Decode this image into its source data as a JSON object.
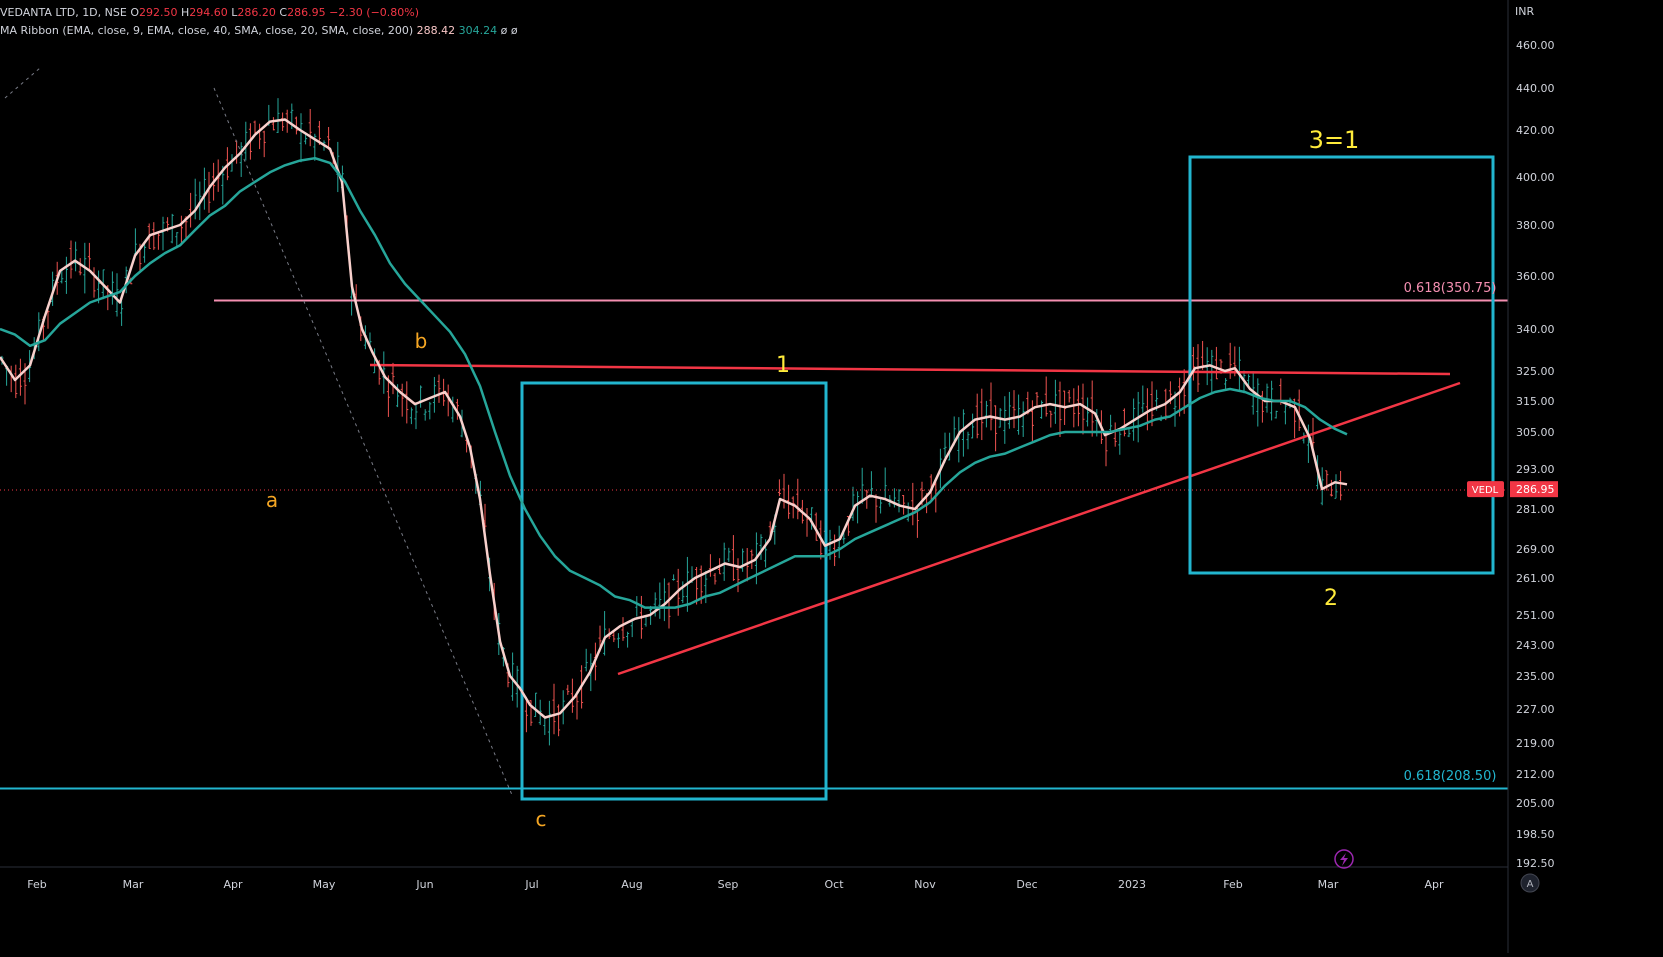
{
  "header": {
    "symbol": "VEDANTA LTD, 1D, NSE",
    "open_label": "O",
    "open": "292.50",
    "high_label": "H",
    "high": "294.60",
    "low_label": "L",
    "low": "286.20",
    "close_label": "C",
    "close": "286.95",
    "change": "−2.30 (−0.80%)",
    "indicator": "MA Ribbon (EMA, close, 9, EMA, close, 40, SMA, close, 20, SMA, close, 200)",
    "ma1": "288.42",
    "ma2": "304.24",
    "ma3": "ø",
    "ma4": "ø"
  },
  "currency": "INR",
  "chart_data": {
    "type": "line",
    "x_labels": [
      "Feb",
      "Mar",
      "Apr",
      "May",
      "Jun",
      "Jul",
      "Aug",
      "Sep",
      "Oct",
      "Nov",
      "Dec",
      "2023",
      "Feb",
      "Mar",
      "Apr"
    ],
    "y_ticks": [
      460.0,
      440.0,
      420.0,
      400.0,
      380.0,
      360.0,
      340.0,
      325.0,
      315.0,
      305.0,
      293.0,
      281.0,
      269.0,
      261.0,
      251.0,
      243.0,
      235.0,
      227.0,
      219.0,
      212.0,
      205.0,
      198.5,
      192.5
    ],
    "y_tick_labels": [
      "460.00",
      "440.00",
      "420.00",
      "400.00",
      "380.00",
      "360.00",
      "340.00",
      "325.00",
      "315.00",
      "305.00",
      "293.00",
      "281.00",
      "269.00",
      "261.00",
      "251.00",
      "243.00",
      "235.00",
      "227.00",
      "219.00",
      "212.00",
      "205.00",
      "198.50",
      "192.50"
    ],
    "price_tag": {
      "symbol": "VEDL",
      "value": "286.95",
      "price": 286.95
    },
    "series": [
      {
        "color": "#f8d0cc",
        "points": [
          [
            0,
            330
          ],
          [
            15,
            322
          ],
          [
            30,
            327
          ],
          [
            45,
            345
          ],
          [
            60,
            362
          ],
          [
            75,
            366
          ],
          [
            90,
            362
          ],
          [
            105,
            356
          ],
          [
            120,
            350
          ],
          [
            135,
            368
          ],
          [
            150,
            376
          ],
          [
            165,
            378
          ],
          [
            180,
            380
          ],
          [
            195,
            386
          ],
          [
            210,
            396
          ],
          [
            225,
            404
          ],
          [
            240,
            410
          ],
          [
            255,
            418
          ],
          [
            270,
            424
          ],
          [
            285,
            425
          ],
          [
            300,
            420
          ],
          [
            315,
            416
          ],
          [
            330,
            412
          ],
          [
            342,
            398
          ],
          [
            352,
            356
          ],
          [
            362,
            340
          ],
          [
            372,
            332
          ],
          [
            385,
            323
          ],
          [
            400,
            318
          ],
          [
            415,
            314
          ],
          [
            430,
            316
          ],
          [
            445,
            318
          ],
          [
            460,
            310
          ],
          [
            470,
            300
          ],
          [
            480,
            284
          ],
          [
            490,
            262
          ],
          [
            500,
            244
          ],
          [
            510,
            235
          ],
          [
            520,
            232
          ],
          [
            530,
            228
          ],
          [
            545,
            225
          ],
          [
            560,
            226
          ],
          [
            575,
            230
          ],
          [
            590,
            236
          ],
          [
            605,
            245
          ],
          [
            620,
            248
          ],
          [
            635,
            250
          ],
          [
            650,
            251
          ],
          [
            665,
            254
          ],
          [
            680,
            258
          ],
          [
            695,
            261
          ],
          [
            710,
            263
          ],
          [
            725,
            265
          ],
          [
            740,
            264
          ],
          [
            755,
            266
          ],
          [
            770,
            272
          ],
          [
            780,
            284
          ],
          [
            795,
            282
          ],
          [
            810,
            278
          ],
          [
            825,
            270
          ],
          [
            840,
            272
          ],
          [
            855,
            282
          ],
          [
            870,
            285
          ],
          [
            885,
            284
          ],
          [
            900,
            282
          ],
          [
            915,
            281
          ],
          [
            930,
            286
          ],
          [
            945,
            296
          ],
          [
            960,
            305
          ],
          [
            975,
            309
          ],
          [
            990,
            310
          ],
          [
            1005,
            309
          ],
          [
            1020,
            310
          ],
          [
            1035,
            313
          ],
          [
            1050,
            314
          ],
          [
            1065,
            313
          ],
          [
            1080,
            314
          ],
          [
            1095,
            311
          ],
          [
            1105,
            304
          ],
          [
            1120,
            306
          ],
          [
            1135,
            309
          ],
          [
            1150,
            312
          ],
          [
            1165,
            314
          ],
          [
            1180,
            318
          ],
          [
            1195,
            326
          ],
          [
            1210,
            327
          ],
          [
            1225,
            325
          ],
          [
            1235,
            326
          ],
          [
            1250,
            319
          ],
          [
            1265,
            315
          ],
          [
            1280,
            315
          ],
          [
            1295,
            313
          ],
          [
            1310,
            303
          ],
          [
            1322,
            287
          ],
          [
            1335,
            289
          ],
          [
            1347,
            288.42
          ]
        ]
      },
      {
        "color": "#26a69a",
        "points": [
          [
            0,
            340
          ],
          [
            15,
            338
          ],
          [
            30,
            334
          ],
          [
            45,
            336
          ],
          [
            60,
            342
          ],
          [
            75,
            346
          ],
          [
            90,
            350
          ],
          [
            105,
            352
          ],
          [
            120,
            354
          ],
          [
            135,
            360
          ],
          [
            150,
            365
          ],
          [
            165,
            369
          ],
          [
            180,
            372
          ],
          [
            195,
            378
          ],
          [
            210,
            384
          ],
          [
            225,
            388
          ],
          [
            240,
            394
          ],
          [
            255,
            398
          ],
          [
            270,
            402
          ],
          [
            285,
            405
          ],
          [
            300,
            407
          ],
          [
            315,
            408
          ],
          [
            330,
            406
          ],
          [
            345,
            398
          ],
          [
            360,
            386
          ],
          [
            375,
            376
          ],
          [
            390,
            365
          ],
          [
            405,
            357
          ],
          [
            420,
            351
          ],
          [
            435,
            345
          ],
          [
            450,
            339
          ],
          [
            465,
            331
          ],
          [
            480,
            320
          ],
          [
            495,
            305
          ],
          [
            510,
            291
          ],
          [
            525,
            281
          ],
          [
            540,
            273
          ],
          [
            555,
            267
          ],
          [
            570,
            263
          ],
          [
            585,
            261
          ],
          [
            600,
            259
          ],
          [
            615,
            256
          ],
          [
            630,
            255
          ],
          [
            645,
            253
          ],
          [
            660,
            253
          ],
          [
            675,
            253
          ],
          [
            690,
            254
          ],
          [
            705,
            256
          ],
          [
            720,
            257
          ],
          [
            735,
            259
          ],
          [
            750,
            261
          ],
          [
            765,
            263
          ],
          [
            780,
            265
          ],
          [
            795,
            267
          ],
          [
            810,
            267
          ],
          [
            825,
            267
          ],
          [
            840,
            269
          ],
          [
            855,
            272
          ],
          [
            870,
            274
          ],
          [
            885,
            276
          ],
          [
            900,
            278
          ],
          [
            915,
            280
          ],
          [
            930,
            283
          ],
          [
            945,
            288
          ],
          [
            960,
            292
          ],
          [
            975,
            295
          ],
          [
            990,
            297
          ],
          [
            1005,
            298
          ],
          [
            1020,
            300
          ],
          [
            1035,
            302
          ],
          [
            1050,
            304
          ],
          [
            1065,
            305
          ],
          [
            1080,
            305
          ],
          [
            1095,
            305
          ],
          [
            1110,
            305
          ],
          [
            1125,
            306
          ],
          [
            1140,
            307
          ],
          [
            1155,
            309
          ],
          [
            1170,
            310
          ],
          [
            1185,
            313
          ],
          [
            1200,
            316
          ],
          [
            1215,
            318
          ],
          [
            1230,
            319
          ],
          [
            1245,
            318
          ],
          [
            1260,
            316
          ],
          [
            1275,
            315
          ],
          [
            1290,
            315
          ],
          [
            1305,
            313
          ],
          [
            1320,
            309
          ],
          [
            1335,
            306
          ],
          [
            1347,
            304.24
          ]
        ]
      }
    ]
  },
  "annotations": {
    "fib_upper": "0.618(350.75)",
    "fib_lower": "0.618(208.50)",
    "wave_a": "a",
    "wave_b": "b",
    "wave_c": "c",
    "wave_1": "1",
    "wave_2": "2",
    "wave_3": "3=1"
  },
  "colors": {
    "price_line": "#f23645",
    "ema_fast": "#f8d0cc",
    "ema_slow": "#26a69a",
    "box": "#22b6cf",
    "pink_line": "#f48fb1",
    "orange_label": "#f5a623",
    "yellow_label": "#ffeb3b"
  }
}
